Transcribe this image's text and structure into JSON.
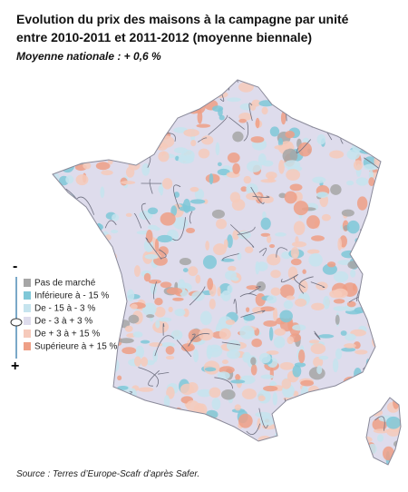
{
  "header": {
    "title": [
      "Evolution du prix des maisons à la campagne par unité",
      "entre 2010-2011 et 2011-2012 (moyenne biennale)"
    ],
    "subtitle": "Moyenne nationale : + 0,6 %"
  },
  "legend": {
    "minus": "-",
    "plus": "+",
    "items": [
      {
        "label": "Pas de marché",
        "color": "#a6a6a6"
      },
      {
        "label": "Inférieure à - 15 %",
        "color": "#7fc8d8"
      },
      {
        "label": "De - 15 à - 3 %",
        "color": "#c6e4ee"
      },
      {
        "label": "De - 3 à + 3 %",
        "color": "#dedcec"
      },
      {
        "label": "De + 3 à + 15 %",
        "color": "#f6cabb"
      },
      {
        "label": "Supérieure à + 15 %",
        "color": "#ee9f86"
      }
    ]
  },
  "source": "Source : Terres d’Europe-Scafr d’après Safer."
}
